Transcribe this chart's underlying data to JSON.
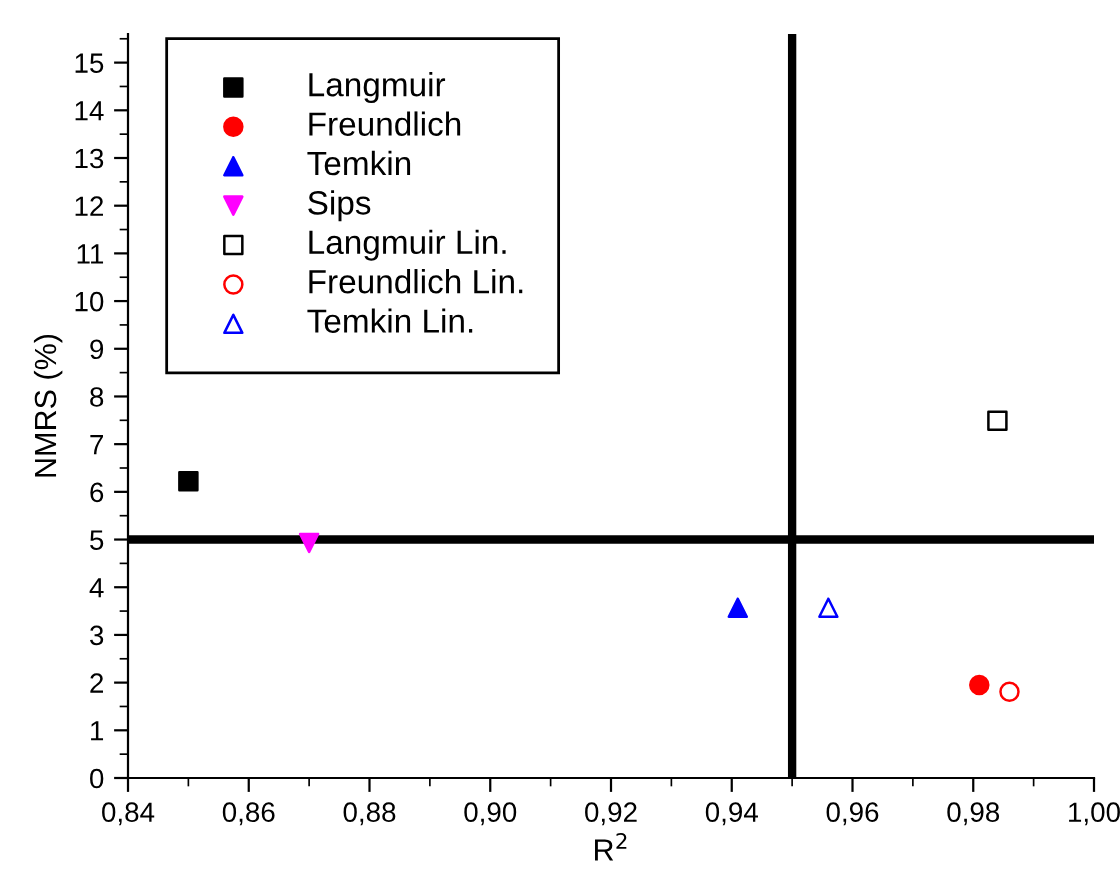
{
  "chart_data": {
    "type": "scatter",
    "xlabel": "R$^{2}$",
    "ylabel": "NMRS (%)",
    "xlim": [
      0.84,
      1.0
    ],
    "xticks": [
      {
        "value": 0.84,
        "label": "0,84"
      },
      {
        "value": 0.86,
        "label": "0,86"
      },
      {
        "value": 0.88,
        "label": "0,88"
      },
      {
        "value": 0.9,
        "label": "0,90"
      },
      {
        "value": 0.92,
        "label": "0,92"
      },
      {
        "value": 0.94,
        "label": "0,94"
      },
      {
        "value": 0.96,
        "label": "0,96"
      },
      {
        "value": 0.98,
        "label": "0,98"
      },
      {
        "value": 1.0,
        "label": "1,00"
      }
    ],
    "ylim": [
      0,
      15.6
    ],
    "yticks": [
      0,
      1,
      2,
      3,
      4,
      5,
      6,
      7,
      8,
      9,
      10,
      11,
      12,
      13,
      14,
      15
    ],
    "grid": false,
    "legend": "top left",
    "ref_lines": [
      {
        "axis": "x",
        "value": 0.95,
        "color": "#000000"
      },
      {
        "axis": "y",
        "value": 5,
        "color": "#000000"
      }
    ],
    "series": [
      {
        "name": "Langmuir",
        "color": "#000000",
        "marker": "square",
        "x": [
          0.85
        ],
        "values": [
          6.22
        ]
      },
      {
        "name": "Freundlich",
        "color": "#ff0000",
        "marker": "circle",
        "x": [
          0.981
        ],
        "values": [
          1.95
        ]
      },
      {
        "name": "Temkin",
        "color": "#0000ff",
        "marker": "triangle",
        "x": [
          0.941
        ],
        "values": [
          3.57
        ]
      },
      {
        "name": "Sips",
        "color": "#ff00ff",
        "marker": "triangle_down",
        "x": [
          0.87
        ],
        "values": [
          4.93
        ]
      },
      {
        "name": "Langmuir Lin.",
        "color": "#000000",
        "marker": "square_open",
        "x": [
          0.984
        ],
        "values": [
          7.49
        ]
      },
      {
        "name": "Freundlich Lin.",
        "color": "#ff0000",
        "marker": "circle_open",
        "x": [
          0.986
        ],
        "values": [
          1.81
        ]
      },
      {
        "name": "Temkin Lin.",
        "color": "#0000ff",
        "marker": "triangle_open",
        "x": [
          0.956
        ],
        "values": [
          3.57
        ]
      }
    ]
  }
}
